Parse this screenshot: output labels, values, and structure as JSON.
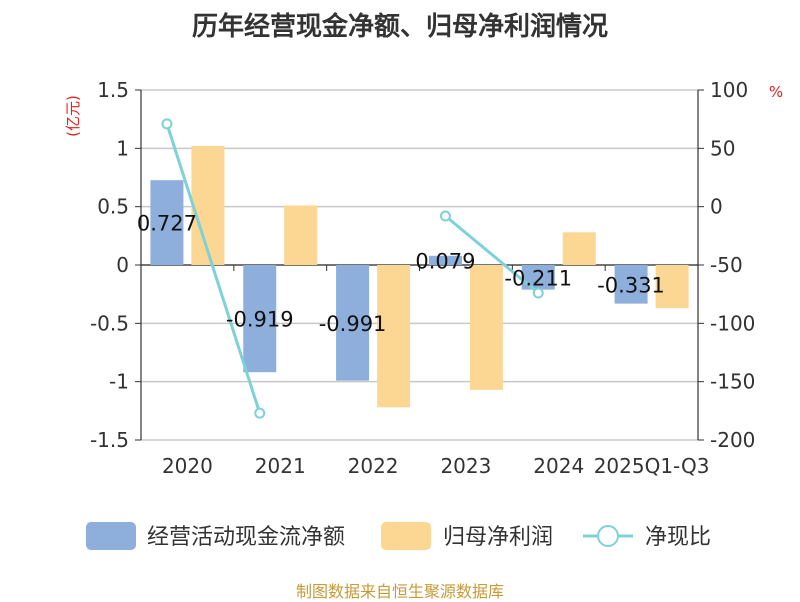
{
  "chart_data": {
    "type": "bar",
    "title": "历年经营现金净额、归母净利润情况",
    "categories": [
      "2020",
      "2021",
      "2022",
      "2023",
      "2024",
      "2025Q1-Q3"
    ],
    "left_axis": {
      "unit": "(亿元)",
      "ticks": [
        "1.5",
        "1",
        "0.5",
        "0",
        "-0.5",
        "-1",
        "-1.5"
      ],
      "ylim": [
        -1.5,
        1.5
      ]
    },
    "right_axis": {
      "unit": "%",
      "ticks": [
        "100",
        "50",
        "0",
        "-50",
        "-100",
        "-150",
        "-200"
      ],
      "ylim": [
        -200,
        100
      ]
    },
    "series": [
      {
        "name": "经营活动现金流净额",
        "kind": "bar",
        "axis": "left",
        "color": "#8eaedb",
        "values": [
          0.727,
          -0.919,
          -0.991,
          0.079,
          -0.211,
          -0.331
        ],
        "labels": [
          "0.727",
          "-0.919",
          "-0.991",
          "0.079",
          "-0.211",
          "-0.331"
        ]
      },
      {
        "name": "归母净利润",
        "kind": "bar",
        "axis": "left",
        "color": "#fcd693",
        "values": [
          1.02,
          0.51,
          -1.22,
          -1.07,
          0.28,
          -0.37
        ]
      },
      {
        "name": "净现比",
        "kind": "line",
        "axis": "right",
        "color": "#7fd1d8",
        "values": [
          71,
          -177,
          null,
          -8,
          -74,
          null
        ]
      }
    ]
  },
  "source": "制图数据来自恒生聚源数据库"
}
